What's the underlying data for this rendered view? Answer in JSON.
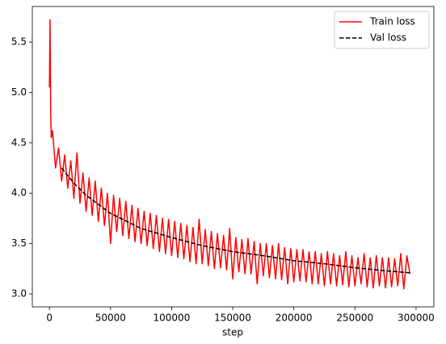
{
  "chart_data": {
    "type": "line",
    "xlabel": "step",
    "xlim": [
      -14000,
      314600
    ],
    "ylim": [
      2.872,
      5.853
    ],
    "xticks": [
      0,
      50000,
      100000,
      150000,
      200000,
      250000,
      300000
    ],
    "yticks": [
      {
        "value": 3,
        "label": "3.0"
      },
      3.5,
      {
        "value": 4,
        "label": "4.0"
      },
      4.5,
      {
        "value": 5,
        "label": "5.0"
      },
      5.5
    ],
    "legend": "upper right",
    "series": [
      {
        "name": "Train loss",
        "color": "#ff0000",
        "dash": "solid",
        "x": [
          0,
          500,
          1000,
          1500,
          2500,
          5000,
          7500,
          10000,
          12500,
          15000,
          17500,
          20000,
          22500,
          25000,
          27500,
          30000,
          32500,
          35000,
          37500,
          40000,
          42500,
          45000,
          47500,
          50000,
          52500,
          55000,
          57500,
          60000,
          62500,
          65000,
          67500,
          70000,
          72500,
          75000,
          77500,
          80000,
          82500,
          85000,
          87500,
          90000,
          92500,
          95000,
          97500,
          100000,
          102500,
          105000,
          107500,
          110000,
          112500,
          115000,
          117500,
          120000,
          122500,
          125000,
          127500,
          130000,
          132500,
          135000,
          137500,
          140000,
          142500,
          145000,
          147500,
          150000,
          152500,
          155000,
          157500,
          160000,
          162500,
          165000,
          167500,
          170000,
          172500,
          175000,
          177500,
          180000,
          182500,
          185000,
          187500,
          190000,
          192500,
          195000,
          197500,
          200000,
          202500,
          205000,
          207500,
          210000,
          212500,
          215000,
          217500,
          220000,
          222500,
          225000,
          227500,
          230000,
          232500,
          235000,
          237500,
          240000,
          242500,
          245000,
          247500,
          250000,
          252500,
          255000,
          257500,
          260000,
          262500,
          265000,
          267500,
          270000,
          272500,
          275000,
          277500,
          280000,
          282500,
          285000,
          287500,
          290000,
          292500,
          295000
        ],
        "values": [
          5.05,
          5.72,
          4.85,
          4.55,
          4.62,
          4.25,
          4.45,
          4.12,
          4.38,
          4.05,
          4.32,
          3.95,
          4.4,
          3.9,
          4.2,
          3.82,
          4.15,
          3.78,
          4.12,
          3.72,
          4.05,
          3.68,
          4.0,
          3.5,
          3.98,
          3.62,
          3.95,
          3.58,
          3.92,
          3.55,
          3.88,
          3.52,
          3.85,
          3.5,
          3.82,
          3.48,
          3.8,
          3.45,
          3.78,
          3.42,
          3.75,
          3.4,
          3.74,
          3.38,
          3.72,
          3.36,
          3.7,
          3.35,
          3.68,
          3.32,
          3.66,
          3.3,
          3.74,
          3.3,
          3.64,
          3.28,
          3.62,
          3.25,
          3.6,
          3.26,
          3.58,
          3.24,
          3.65,
          3.15,
          3.56,
          3.22,
          3.54,
          3.2,
          3.55,
          3.2,
          3.52,
          3.1,
          3.5,
          3.18,
          3.5,
          3.16,
          3.48,
          3.15,
          3.5,
          3.14,
          3.46,
          3.1,
          3.45,
          3.12,
          3.44,
          3.13,
          3.44,
          3.12,
          3.42,
          3.1,
          3.42,
          3.1,
          3.4,
          3.08,
          3.42,
          3.1,
          3.4,
          3.08,
          3.38,
          3.09,
          3.42,
          3.07,
          3.38,
          3.08,
          3.36,
          3.1,
          3.4,
          3.07,
          3.36,
          3.06,
          3.38,
          3.08,
          3.36,
          3.06,
          3.36,
          3.07,
          3.35,
          3.08,
          3.4,
          3.05,
          3.38,
          3.2
        ]
      },
      {
        "name": "Val loss",
        "color": "#000000",
        "dash": "dashed",
        "x": [
          10000,
          20000,
          30000,
          50000,
          75000,
          100000,
          125000,
          150000,
          175000,
          200000,
          225000,
          250000,
          275000,
          295000
        ],
        "values": [
          4.25,
          4.1,
          3.98,
          3.8,
          3.65,
          3.56,
          3.48,
          3.42,
          3.38,
          3.33,
          3.3,
          3.26,
          3.23,
          3.21
        ]
      }
    ]
  }
}
